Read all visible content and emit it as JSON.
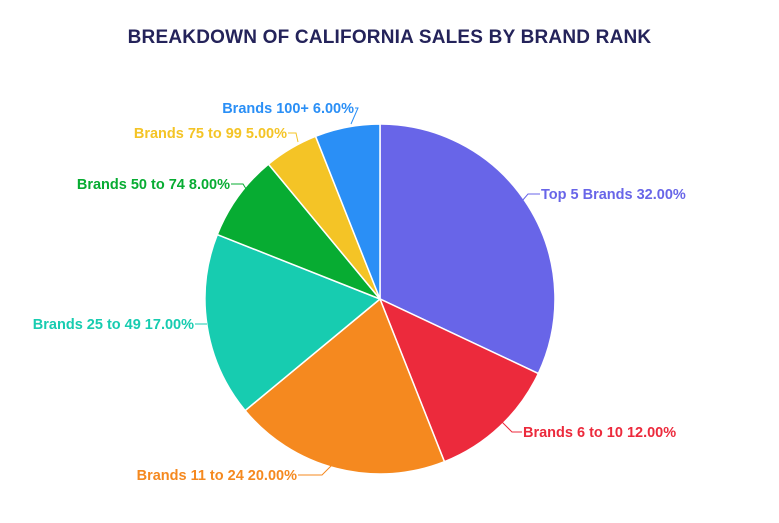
{
  "chart_data": {
    "type": "pie",
    "title": "BREAKDOWN OF CALIFORNIA SALES BY BRAND RANK",
    "slices": [
      {
        "label": "Top 5 Brands 32.00%",
        "value": 32.0,
        "color": "#6865e8"
      },
      {
        "label": "Brands 6 to 10 12.00%",
        "value": 12.0,
        "color": "#ec2a3c"
      },
      {
        "label": "Brands 11 to 24 20.00%",
        "value": 20.0,
        "color": "#f5891f"
      },
      {
        "label": "Brands 25 to 49 17.00%",
        "value": 17.0,
        "color": "#17ccb0"
      },
      {
        "label": "Brands 50 to 74 8.00%",
        "value": 8.0,
        "color": "#07ac32"
      },
      {
        "label": "Brands 75 to 99 5.00%",
        "value": 5.0,
        "color": "#f4c426"
      },
      {
        "label": "Brands 100+ 6.00%",
        "value": 6.0,
        "color": "#2a8ff6"
      }
    ]
  }
}
